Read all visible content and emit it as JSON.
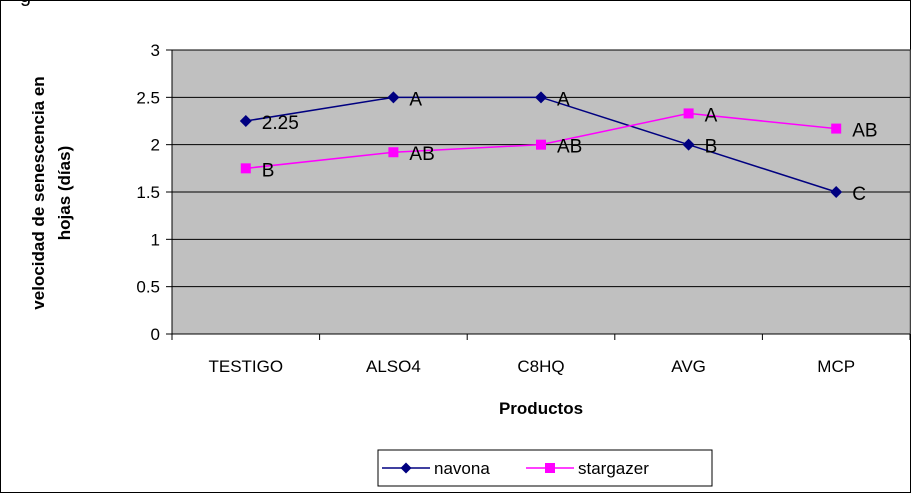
{
  "chart_data": {
    "type": "line",
    "title_fragment": "g",
    "xlabel": "Productos",
    "ylabel_lines": [
      "velocidad de senescencia en",
      "hojas (días)"
    ],
    "categories": [
      "TESTIGO",
      "ALSO4",
      "C8HQ",
      "AVG",
      "MCP"
    ],
    "ylim": [
      0,
      3
    ],
    "yticks": [
      "0",
      "0.5",
      "1",
      "1.5",
      "2",
      "2.5",
      "3"
    ],
    "grid": true,
    "plot_background": "#c0c0c0",
    "legend_position": "bottom",
    "series": [
      {
        "name": "navona",
        "color": "#000080",
        "marker": "diamond",
        "values": [
          2.25,
          2.5,
          2.5,
          2.0,
          1.5
        ],
        "labels": [
          "2.25",
          "A",
          "A",
          "B",
          "C"
        ]
      },
      {
        "name": "stargazer",
        "color": "#ff00ff",
        "marker": "square",
        "values": [
          1.75,
          1.92,
          2.0,
          2.33,
          2.17
        ],
        "labels": [
          "B",
          "AB",
          "AB",
          "A",
          "AB"
        ]
      }
    ]
  }
}
